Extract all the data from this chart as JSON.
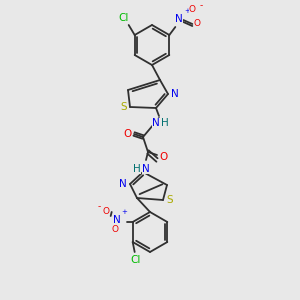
{
  "bg_color": "#e8e8e8",
  "atom_colors": {
    "C": "#303030",
    "N": "#0000ee",
    "O": "#ee0000",
    "S": "#aaaa00",
    "Cl": "#00bb00",
    "H": "#007070",
    "bond": "#303030"
  },
  "figsize": [
    3.0,
    3.0
  ],
  "dpi": 100
}
